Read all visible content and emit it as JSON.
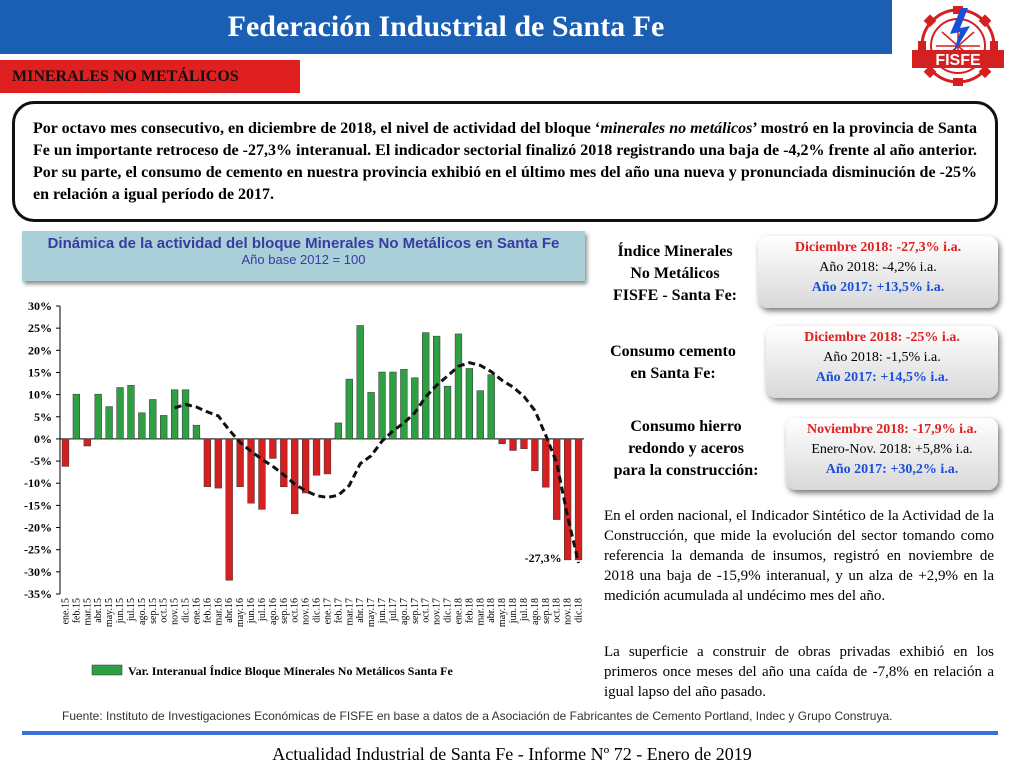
{
  "header": {
    "title": "Federación Industrial de Santa Fe"
  },
  "logo": {
    "text": "FISFE",
    "color": "#d42020"
  },
  "section": {
    "label": "MINERALES NO METÁLICOS"
  },
  "summary": {
    "text_parts": [
      "Por octavo mes consecutivo, en diciembre de 2018, el nivel de actividad del bloque ‘",
      "minerales no metálicos",
      "’ mostró en la provincia de Santa Fe un importante retroceso de -27,3% interanual. El indicador sectorial finalizó 2018 registrando una baja de -4,2% frente al año anterior. Por su parte, el consumo de cemento en nuestra provincia exhibió en el último mes del año una nueva y pronunciada disminución de -25% en relación a igual período de 2017."
    ]
  },
  "chart_panel": {
    "title": "Dinámica de la actividad del bloque Minerales No Metálicos en Santa Fe",
    "subtitle": "Año base 2012 = 100"
  },
  "indicators": [
    {
      "label": [
        "Índice Minerales",
        "No Metálicos",
        "FISFE - Santa Fe:"
      ],
      "lines": [
        "Diciembre 2018: -27,3% i.a.",
        "Año 2018: -4,2% i.a.",
        "Año 2017: +13,5% i.a."
      ]
    },
    {
      "label": [
        "Consumo cemento",
        "en Santa Fe:"
      ],
      "lines": [
        "Diciembre 2018: -25% i.a.",
        "Año 2018: -1,5% i.a.",
        "Año 2017: +14,5% i.a."
      ]
    },
    {
      "label": [
        "Consumo hierro",
        "redondo y aceros",
        "para la construcción:"
      ],
      "lines": [
        "Noviembre  2018: -17,9% i.a.",
        "Enero-Nov. 2018: +5,8% i.a.",
        "Año 2017: +30,2% i.a."
      ]
    }
  ],
  "paragraphs": [
    "En el orden nacional, el Indicador Sintético de la Actividad de la Construcción, que mide la evolución del sector tomando como referencia la demanda de insumos, registró en noviembre de 2018 una baja de -15,9% interanual, y un alza de +2,9% en la medición acumulada al undécimo mes del año.",
    "La superficie a construir de obras privadas exhibió en los primeros once meses del año una caída de -7,8% en relación a igual lapso del año pasado."
  ],
  "source": "Fuente: Instituto de Investigaciones Económicas de FISFE en base a datos de a Asociación de Fabricantes de Cemento Portland, Indec y Grupo Construya.",
  "footer": "Actualidad Industrial de Santa Fe - Informe Nº 72 - Enero de 2019",
  "colors": {
    "title_bar": "#1a5fb4",
    "section_tag": "#e02020",
    "bar_positive": "#2ea043",
    "bar_negative": "#d42020",
    "trend": "#111111",
    "chart_panel": "#a9cfd9"
  },
  "chart_data": {
    "type": "bar",
    "categories": [
      "ene.15",
      "feb.15",
      "mar.15",
      "abr.15",
      "may.15",
      "jun.15",
      "jul.15",
      "ago.15",
      "sep.15",
      "oct.15",
      "nov.15",
      "dic.15",
      "ene.16",
      "feb.16",
      "mar.16",
      "abr.16",
      "may.16",
      "jun.16",
      "jul.16",
      "ago.16",
      "sep.16",
      "oct.16",
      "nov.16",
      "dic.16",
      "ene.17",
      "feb.17",
      "mar.17",
      "abr.17",
      "may.17",
      "jun.17",
      "jul.17",
      "ago.17",
      "sep.17",
      "oct.17",
      "nov.17",
      "dic.17",
      "ene.18",
      "feb.18",
      "mar.18",
      "abr.18",
      "may.18",
      "jun.18",
      "jul.18",
      "ago.18",
      "sep.18",
      "oct.18",
      "nov.18",
      "dic.18"
    ],
    "series": [
      {
        "name": "Var. Interanual Índice Bloque Minerales No Metálicos Santa Fe",
        "values": [
          -6.2,
          10.1,
          -1.6,
          10.1,
          7.3,
          11.6,
          12.1,
          5.9,
          8.9,
          5.3,
          11.1,
          11.1,
          3.1,
          -10.8,
          -11.1,
          -31.9,
          -10.8,
          -14.5,
          -15.9,
          -4.4,
          -10.8,
          -16.9,
          -12.2,
          -8.2,
          -7.9,
          3.6,
          13.5,
          25.6,
          10.5,
          15.1,
          15.1,
          15.7,
          13.8,
          24.0,
          23.2,
          11.9,
          23.7,
          15.9,
          10.9,
          14.5,
          -1.1,
          -2.6,
          -2.2,
          -7.2,
          -10.9,
          -18.2,
          -27.3,
          -27.3
        ]
      }
    ],
    "trend": {
      "x": [
        "nov.15",
        "dic.15",
        "ene.16",
        "feb.16",
        "mar.16",
        "abr.16",
        "may.16",
        "jun.16",
        "jul.16",
        "ago.16",
        "sep.16",
        "oct.16",
        "nov.16",
        "dic.16",
        "ene.17",
        "feb.17",
        "mar.17",
        "abr.17",
        "may.17",
        "jun.17",
        "jul.17",
        "ago.17",
        "sep.17",
        "oct.17",
        "nov.17",
        "dic.17",
        "ene.18",
        "feb.18",
        "mar.18",
        "abr.18",
        "may.18",
        "jun.18",
        "jul.18",
        "ago.18",
        "sep.18",
        "oct.18",
        "nov.18",
        "dic.18"
      ],
      "values": [
        7.0,
        7.8,
        7.2,
        6.1,
        5.2,
        2.0,
        -0.8,
        -2.8,
        -4.6,
        -6.2,
        -8.1,
        -10.2,
        -11.7,
        -12.8,
        -13.2,
        -12.7,
        -10.5,
        -5.6,
        -3.8,
        -0.5,
        1.8,
        3.6,
        5.9,
        9.5,
        12.1,
        14.2,
        16.4,
        17.2,
        16.6,
        15.2,
        13.2,
        11.7,
        9.6,
        6.4,
        0.8,
        -5.4,
        -17.5,
        -28.0
      ]
    },
    "annotations": [
      {
        "label": "-27,3%",
        "x": "nov.18"
      }
    ],
    "ylim": [
      -35,
      30
    ],
    "yticks": [
      "30%",
      "25%",
      "20%",
      "15%",
      "10%",
      "5%",
      "0%",
      "-5%",
      "-10%",
      "-15%",
      "-20%",
      "-25%",
      "-30%",
      "-35%"
    ],
    "grid": false,
    "legend": "bottom"
  }
}
